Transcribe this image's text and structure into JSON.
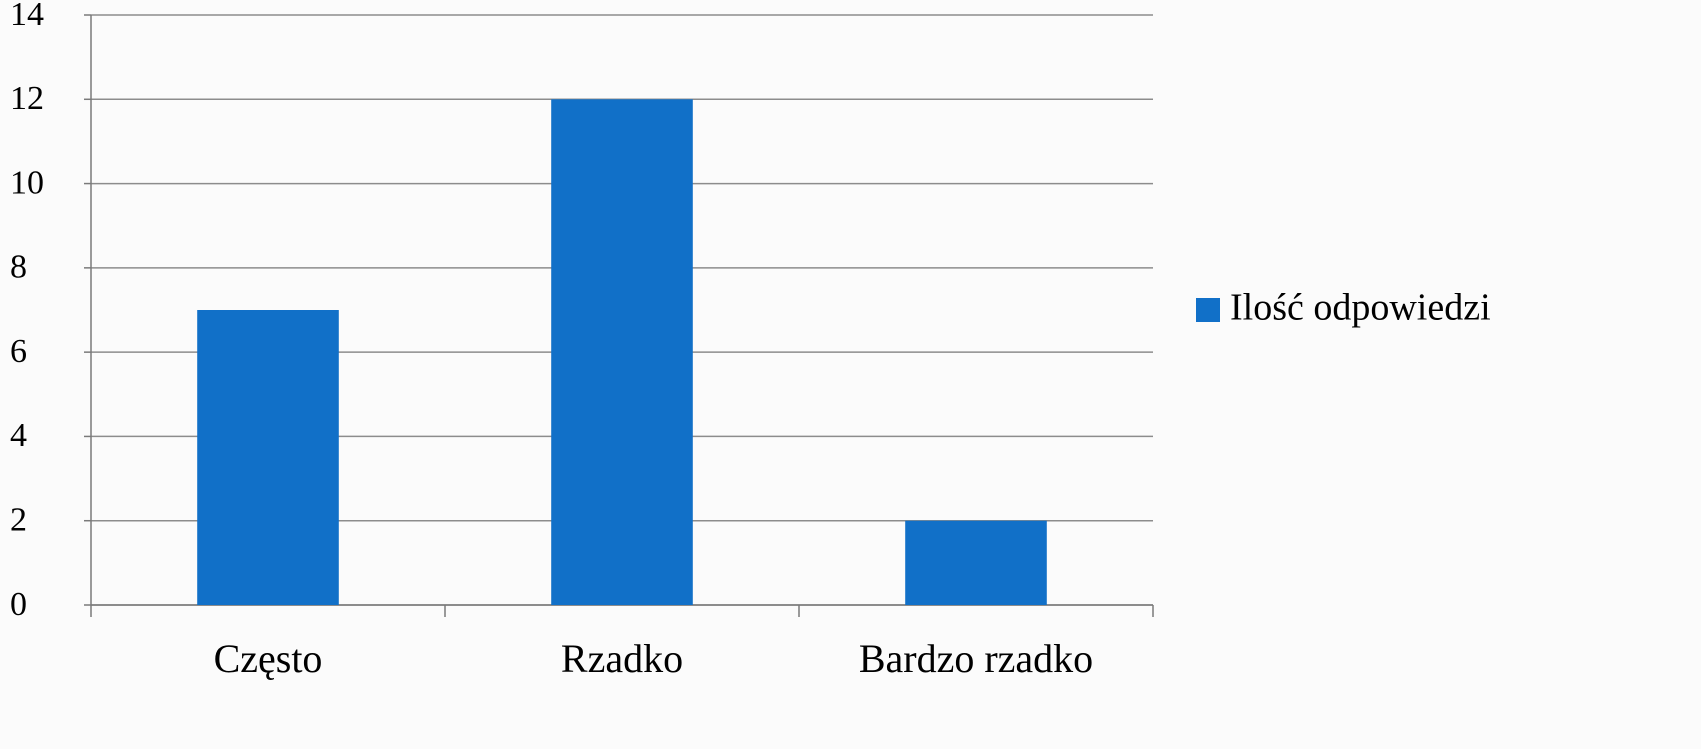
{
  "chart_data": {
    "type": "bar",
    "categories": [
      "Często",
      "Rzadko",
      "Bardzo rzadko"
    ],
    "series": [
      {
        "name": "Ilość odpowiedzi",
        "color": "#1170c8",
        "values": [
          7,
          12,
          2
        ]
      }
    ],
    "ylim": [
      0,
      14
    ],
    "yticks": [
      0,
      2,
      4,
      6,
      8,
      10,
      12,
      14
    ],
    "grid": true,
    "legend": "right"
  }
}
